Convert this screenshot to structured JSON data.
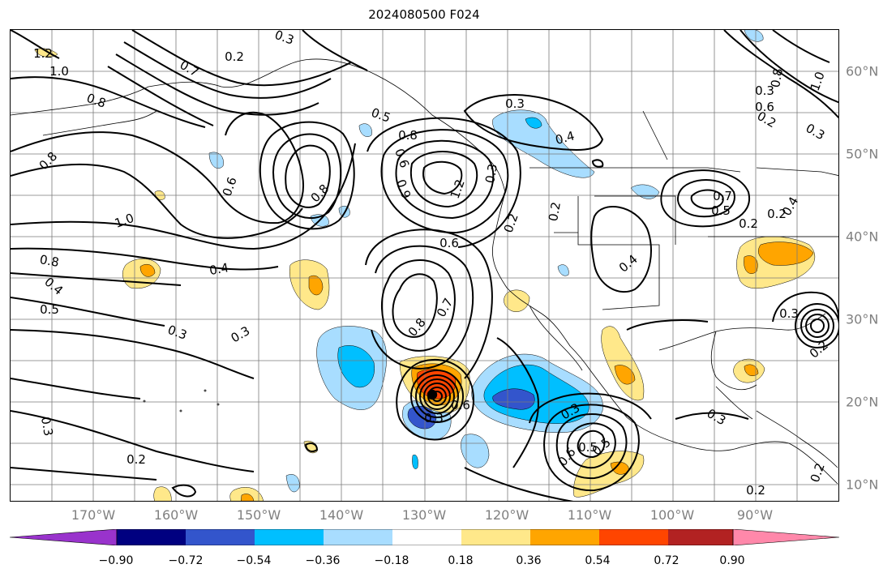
{
  "title": "2024080500 F024",
  "lat_labels": [
    "60°N",
    "50°N",
    "40°N",
    "30°N",
    "20°N",
    "10°N"
  ],
  "lon_labels": [
    "170°W",
    "160°W",
    "150°W",
    "140°W",
    "130°W",
    "120°W",
    "110°W",
    "100°W",
    "90°W"
  ],
  "map_extent": {
    "lon_west": -178,
    "lon_east": -78,
    "lat_south": 8,
    "lat_north": 65
  },
  "grid": true,
  "colorbar": {
    "ticks": [
      "−0.90",
      "−0.72",
      "−0.54",
      "−0.36",
      "−0.18",
      "0.18",
      "0.36",
      "0.54",
      "0.72",
      "0.90"
    ],
    "colors": [
      "#9933cc",
      "#000080",
      "#3355cc",
      "#00bfff",
      "#a8ddff",
      "#ffffff",
      "#ffe88a",
      "#ffa500",
      "#ff4500",
      "#b22222",
      "#ff88aa"
    ],
    "extend": "both"
  },
  "contour_labels": [
    {
      "text": "1.2"
    },
    {
      "text": "1.0"
    },
    {
      "text": "0.8"
    },
    {
      "text": "0.3"
    },
    {
      "text": "0.2"
    },
    {
      "text": "0.7"
    },
    {
      "text": "0.8"
    },
    {
      "text": "0.8"
    },
    {
      "text": "0.6"
    },
    {
      "text": "1.0"
    },
    {
      "text": "0.8"
    },
    {
      "text": "0.4"
    },
    {
      "text": "0.5"
    },
    {
      "text": "0.4"
    },
    {
      "text": "0.3"
    },
    {
      "text": "0.3"
    },
    {
      "text": "0.3"
    },
    {
      "text": "0.2"
    },
    {
      "text": "0.5"
    },
    {
      "text": "0.8"
    },
    {
      "text": "0.6"
    },
    {
      "text": "0.9"
    },
    {
      "text": "1.2"
    },
    {
      "text": "0.3"
    },
    {
      "text": "0.6"
    },
    {
      "text": "0.7"
    },
    {
      "text": "0.8"
    },
    {
      "text": "0.3"
    },
    {
      "text": "0.4"
    },
    {
      "text": "0.2"
    },
    {
      "text": "0.2"
    },
    {
      "text": "0.4"
    },
    {
      "text": "0.7"
    },
    {
      "text": "0.2"
    },
    {
      "text": "0.4"
    },
    {
      "text": "0.5"
    },
    {
      "text": "0.6"
    },
    {
      "text": "0.3"
    },
    {
      "text": "0.3"
    },
    {
      "text": "0.5"
    },
    {
      "text": "0.6"
    },
    {
      "text": "0.5"
    },
    {
      "text": "0.3"
    },
    {
      "text": "0.2"
    },
    {
      "text": "0.2"
    },
    {
      "text": "0.2"
    },
    {
      "text": "0.3"
    },
    {
      "text": "0.2"
    },
    {
      "text": "0.2"
    },
    {
      "text": "0.3"
    },
    {
      "text": "0.3"
    },
    {
      "text": "1.0"
    },
    {
      "text": "0.6"
    },
    {
      "text": "0.8"
    }
  ]
}
